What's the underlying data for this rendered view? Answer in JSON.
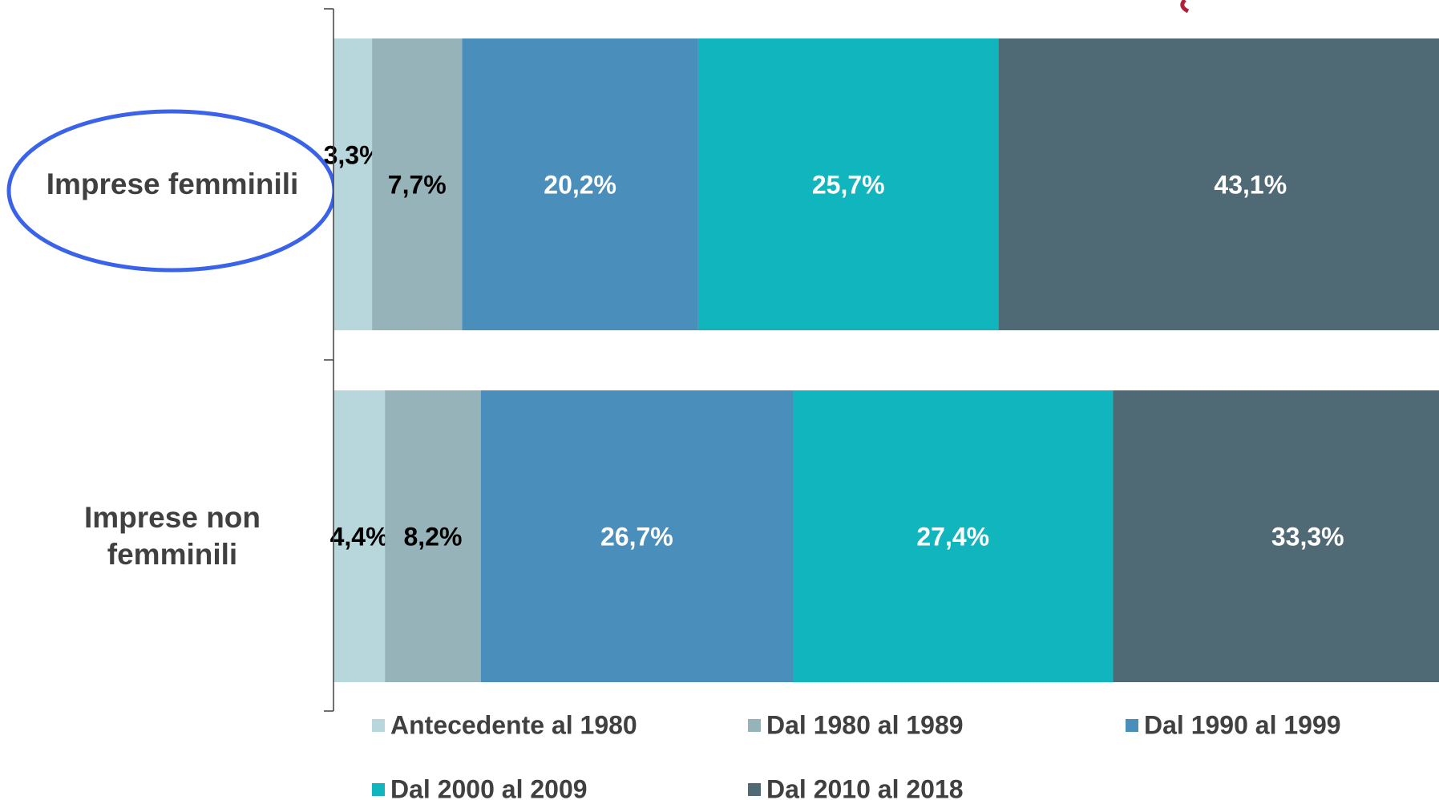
{
  "chart_data": {
    "type": "stacked_barh",
    "categories": [
      "Imprese femminili",
      "Imprese non femminili"
    ],
    "xlim": [
      0,
      100
    ],
    "series": [
      {
        "name": "Antecedente al 1980",
        "color": "#b7d7dc",
        "values": [
          3.3,
          4.4
        ],
        "value_labels": [
          "3,3%",
          "4,4%"
        ]
      },
      {
        "name": "Dal 1980 al 1989",
        "color": "#95b3b8",
        "values": [
          7.7,
          8.2
        ],
        "value_labels": [
          "7,7%",
          "8,2%"
        ]
      },
      {
        "name": "Dal 1990 al 1999",
        "color": "#4a8fbb",
        "values": [
          20.2,
          26.7
        ],
        "value_labels": [
          "20,2%",
          "26,7%"
        ]
      },
      {
        "name": "Dal 2000 al 2009",
        "color": "#10b5bd",
        "values": [
          25.7,
          27.4
        ],
        "value_labels": [
          "25,7%",
          "27,4%"
        ]
      },
      {
        "name": "Dal 2010 al 2018",
        "color": "#4f6a75",
        "values": [
          43.1,
          33.3
        ],
        "value_labels": [
          "43,1%",
          "33,3%"
        ]
      }
    ],
    "legend": "bottom"
  }
}
